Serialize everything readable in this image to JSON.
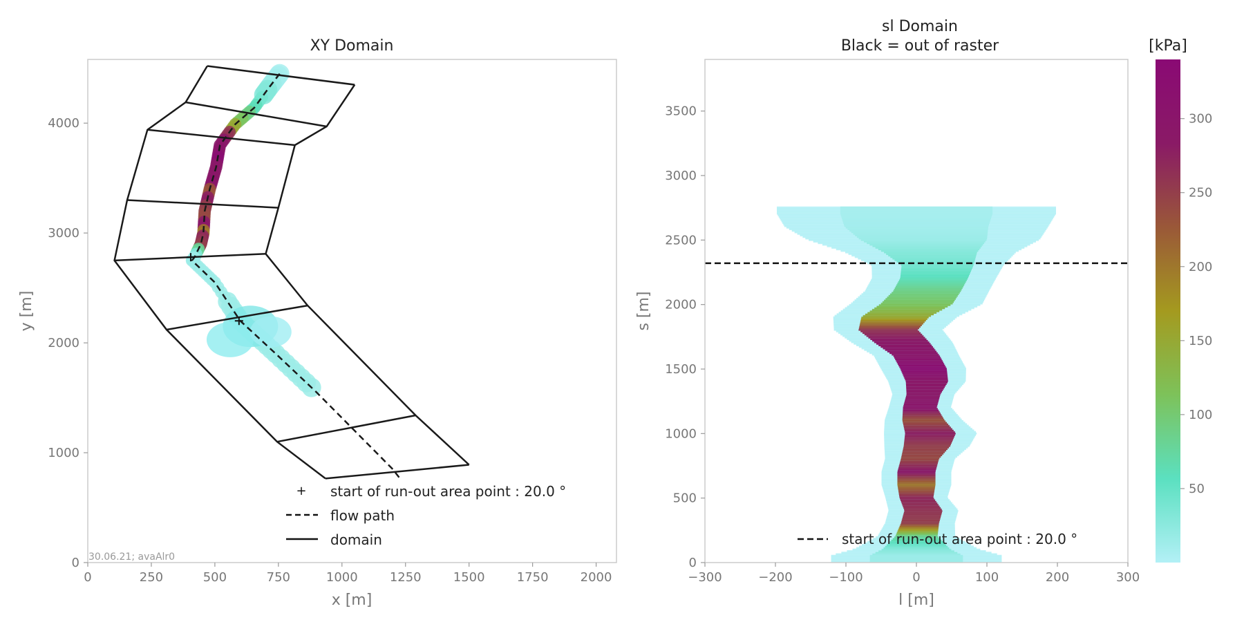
{
  "chart_data": [
    {
      "type": "line",
      "title": "XY Domain",
      "xlabel": "x [m]",
      "ylabel": "y [m]",
      "xlim": [
        0,
        2080
      ],
      "ylim": [
        0,
        4580
      ],
      "xticks": [
        0,
        250,
        500,
        750,
        1000,
        1250,
        1500,
        1750,
        2000
      ],
      "yticks": [
        0,
        1000,
        2000,
        3000,
        4000
      ],
      "footnote": "30.06.21; avaAlr0",
      "series": [
        {
          "name": "domain",
          "style": "solid",
          "color": "#1a1a1a",
          "left_edge": [
            [
              470,
              4520
            ],
            [
              385,
              4190
            ],
            [
              235,
              3940
            ],
            [
              155,
              3300
            ],
            [
              105,
              2750
            ],
            [
              310,
              2120
            ],
            [
              745,
              1100
            ],
            [
              935,
              765
            ]
          ],
          "right_edge": [
            [
              1050,
              4350
            ],
            [
              940,
              3970
            ],
            [
              815,
              3800
            ],
            [
              750,
              3230
            ],
            [
              700,
              2810
            ],
            [
              865,
              2340
            ],
            [
              1290,
              1340
            ],
            [
              1500,
              890
            ]
          ],
          "cross_lines": [
            [
              [
                470,
                4520
              ],
              [
                1050,
                4350
              ]
            ],
            [
              [
                385,
                4190
              ],
              [
                940,
                3970
              ]
            ],
            [
              [
                235,
                3940
              ],
              [
                815,
                3800
              ]
            ],
            [
              [
                155,
                3300
              ],
              [
                750,
                3230
              ]
            ],
            [
              [
                105,
                2750
              ],
              [
                700,
                2810
              ]
            ],
            [
              [
                310,
                2120
              ],
              [
                865,
                2340
              ]
            ],
            [
              [
                745,
                1100
              ],
              [
                1290,
                1340
              ]
            ],
            [
              [
                935,
                765
              ],
              [
                1500,
                890
              ]
            ]
          ]
        },
        {
          "name": "flow path",
          "style": "dashed",
          "color": "#1a1a1a",
          "x": [
            755,
            715,
            655,
            580,
            520,
            505,
            480,
            460,
            455,
            445,
            420,
            410,
            500,
            600,
            740,
            900,
            1050,
            1200,
            1230
          ],
          "y": [
            4450,
            4330,
            4140,
            3990,
            3800,
            3600,
            3400,
            3200,
            3000,
            2900,
            2780,
            2750,
            2550,
            2200,
            1900,
            1550,
            1200,
            850,
            760
          ]
        },
        {
          "name": "start of run-out area point : 20.0 °",
          "style": "marker",
          "marker": "+",
          "x": [
            595,
            405
          ],
          "y": [
            2200,
            2780
          ]
        }
      ],
      "legend": {
        "position": "bottom-right",
        "entries": [
          "start of run-out area point : 20.0 °",
          "flow path",
          "domain"
        ]
      }
    },
    {
      "type": "heatmap",
      "title": "sl Domain",
      "subtitle": "Black = out of raster",
      "xlabel": "l [m]",
      "ylabel": "s [m]",
      "xlim": [
        -300,
        300
      ],
      "ylim": [
        0,
        3900
      ],
      "xticks": [
        -300,
        -200,
        -100,
        0,
        100,
        200,
        300
      ],
      "xtick_labels": [
        "−300",
        "−200",
        "−100",
        "0",
        "100",
        "200",
        "300"
      ],
      "yticks": [
        0,
        500,
        1000,
        1500,
        2000,
        2500,
        3000,
        3500
      ],
      "colorbar": {
        "label": "[kPa]",
        "range": [
          0,
          340
        ],
        "ticks": [
          50,
          100,
          150,
          200,
          250,
          300
        ],
        "colors": [
          "#b3f0f6",
          "#5be0c0",
          "#7dc25a",
          "#a49a1f",
          "#9a5838",
          "#8a1a66",
          "#8a0a74"
        ]
      },
      "hline": {
        "s": 2320,
        "label": "start of run-out area point : 20.0 °",
        "style": "dashed"
      },
      "field": {
        "s": [
          50,
          100,
          200,
          300,
          400,
          500,
          600,
          700,
          800,
          900,
          1000,
          1100,
          1200,
          1300,
          1400,
          1500,
          1600,
          1700,
          1800,
          1900,
          2000,
          2100,
          2200,
          2300,
          2400,
          2500,
          2600,
          2700
        ],
        "center_l": [
          0,
          0,
          0,
          5,
          10,
          0,
          0,
          0,
          5,
          15,
          20,
          10,
          5,
          10,
          15,
          10,
          0,
          -20,
          -40,
          -30,
          0,
          15,
          25,
          30,
          20,
          10,
          0,
          0
        ],
        "half_width": [
          110,
          80,
          50,
          45,
          45,
          40,
          45,
          45,
          45,
          55,
          60,
          50,
          40,
          40,
          50,
          55,
          55,
          65,
          70,
          80,
          85,
          80,
          80,
          85,
          110,
          150,
          170,
          180
        ],
        "pressure_kPa": [
          15,
          30,
          80,
          250,
          260,
          270,
          200,
          290,
          240,
          250,
          280,
          230,
          300,
          290,
          290,
          330,
          300,
          290,
          260,
          150,
          110,
          90,
          60,
          40,
          30,
          15,
          10,
          8
        ]
      },
      "legend": {
        "position": "bottom-right",
        "entries": [
          "start of run-out area point : 20.0 °"
        ]
      }
    }
  ]
}
